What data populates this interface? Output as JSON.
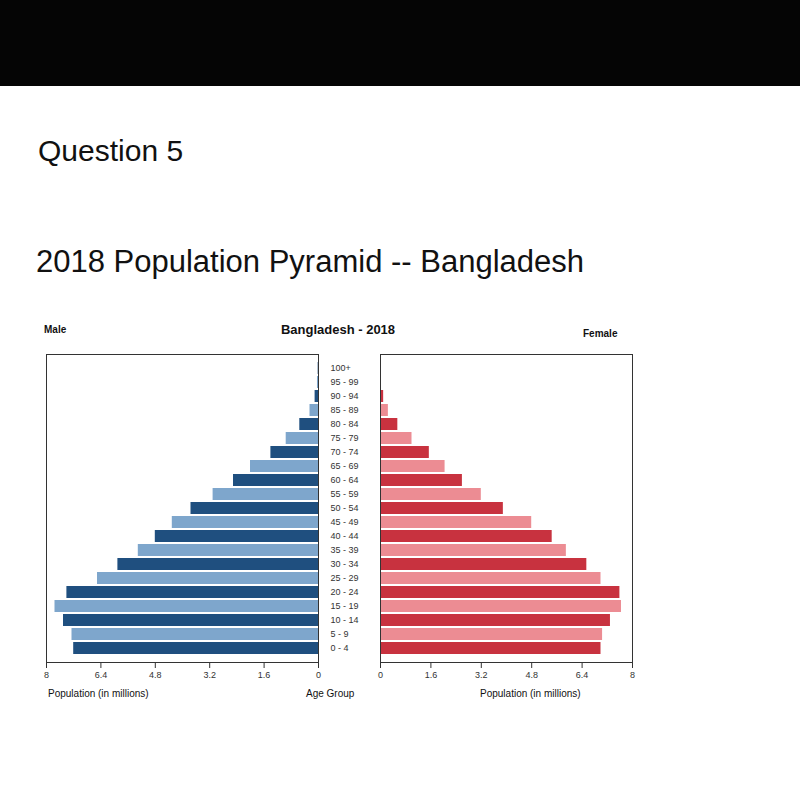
{
  "header": {
    "question": "Question 5",
    "title": "2018 Population Pyramid -- Bangladesh"
  },
  "chart_data": {
    "type": "bar",
    "orientation": "horizontal",
    "title": "Bangladesh - 2018",
    "x_label": "Population (in millions)",
    "y_label": "Age Group",
    "categories": [
      "100+",
      "95 - 99",
      "90 - 94",
      "85 - 89",
      "80 - 84",
      "75 - 79",
      "70 - 74",
      "65 - 69",
      "60 - 64",
      "55 - 59",
      "50 - 54",
      "45 - 49",
      "40 - 44",
      "35 - 39",
      "30 - 34",
      "25 - 29",
      "20 - 24",
      "15 - 19",
      "10 - 14",
      "5 - 9",
      "0 - 4"
    ],
    "series": [
      {
        "name": "Male",
        "colors": [
          "#1f4f7f",
          "#7ea6cc",
          "#1f4f7f",
          "#7ea6cc",
          "#1f4f7f",
          "#7ea6cc",
          "#1f4f7f",
          "#7ea6cc",
          "#1f4f7f",
          "#7ea6cc",
          "#1f4f7f",
          "#7ea6cc",
          "#1f4f7f",
          "#7ea6cc",
          "#1f4f7f",
          "#7ea6cc",
          "#1f4f7f",
          "#7ea6cc",
          "#1f4f7f",
          "#7ea6cc",
          "#1f4f7f"
        ],
        "values": [
          0.01,
          0.03,
          0.1,
          0.25,
          0.55,
          0.95,
          1.4,
          2.0,
          2.5,
          3.1,
          3.75,
          4.3,
          4.8,
          5.3,
          5.9,
          6.5,
          7.4,
          7.75,
          7.5,
          7.25,
          7.2
        ]
      },
      {
        "name": "Female",
        "colors": [
          "#c8323f",
          "#ec8c93",
          "#c8323f",
          "#ec8c93",
          "#c8323f",
          "#ec8c93",
          "#c8323f",
          "#ec8c93",
          "#c8323f",
          "#ec8c93",
          "#c8323f",
          "#ec8c93",
          "#c8323f",
          "#ec8c93",
          "#c8323f",
          "#ec8c93",
          "#c8323f",
          "#ec8c93",
          "#c8323f",
          "#ec8c93",
          "#c8323f"
        ],
        "values": [
          0.01,
          0.03,
          0.1,
          0.25,
          0.55,
          1.0,
          1.55,
          2.05,
          2.6,
          3.2,
          3.9,
          4.8,
          5.45,
          5.9,
          6.55,
          7.0,
          7.6,
          7.65,
          7.3,
          7.05,
          7.0
        ]
      }
    ],
    "xlim": [
      0,
      8
    ],
    "xticks": [
      0,
      1.6,
      3.2,
      4.8,
      6.4,
      8
    ],
    "grid": false
  }
}
